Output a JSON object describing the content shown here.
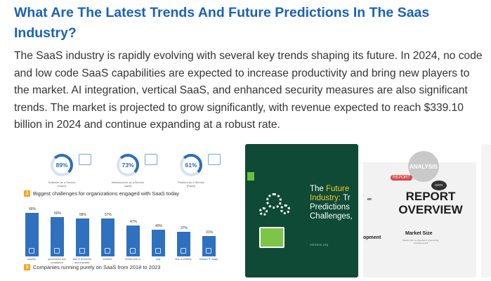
{
  "answer": {
    "title": "What Are The Latest Trends And Future Predictions In The Saas Industry?",
    "body": "The SaaS industry is rapidly evolving with several key trends shaping its future. In 2024, no code and low code SaaS capabilities are expected to increase productivity and bring new players to the market. AI integration, vertical SaaS, and enhanced security measures are also significant trends. The market is projected to grow significantly, with revenue expected to reach $339.10 billion in 2024 and continue expanding at a robust rate."
  },
  "images": {
    "stats": {
      "gauges": [
        {
          "value": "89%",
          "caption": "Software as a Service (SaaS)"
        },
        {
          "value": "73%",
          "caption": "Infrastructure as a Service (IaaS)"
        },
        {
          "value": "61%",
          "caption": "Platform as a Service (PaaS)"
        }
      ],
      "section2": {
        "num": "2",
        "title": "Biggest challenges for organizations engaged with SaaS today"
      },
      "bars": [
        {
          "label": "66%",
          "value": 66,
          "caption": "security"
        },
        {
          "label": "60%",
          "value": 60,
          "caption": "governance and compliance"
        },
        {
          "label": "58%",
          "value": 58,
          "caption": "lack of resources and expertise"
        },
        {
          "label": "57%",
          "value": 57,
          "caption": "software"
        },
        {
          "label": "47%",
          "value": 47,
          "caption": "vendor lock-in"
        },
        {
          "label": "40%",
          "value": 40,
          "caption": "cost"
        },
        {
          "label": "37%",
          "value": 37,
          "caption": "lack of visibility"
        },
        {
          "label": "31%",
          "value": 31,
          "caption": "shadow IT usage"
        }
      ],
      "section3": {
        "num": "3",
        "title": "Companies running purely on SaaS from 2018 to 2023"
      }
    },
    "future": {
      "line1_plain": "The ",
      "line1_hl": "Future",
      "line2_hl": "Industry:",
      "line2_plain": " Tr",
      "line3": "Predictions",
      "line4": "Challenges,",
      "url": "zenmos.org"
    },
    "report": {
      "analysis": "ANALYSIS",
      "report_tag": "REPORT",
      "data_tag": "DATA",
      "title": "REPORT OVERVIEW",
      "market_size": "Market Size",
      "market_note": "Market Size is expected to grow during forecast period",
      "side_left": "opment",
      "side_top": "en"
    }
  },
  "colors": {
    "title": "#1a62b6",
    "bar": "#2f70bf",
    "green_bg": "#0e4a36",
    "accent_yellow": "#f3c62a"
  }
}
